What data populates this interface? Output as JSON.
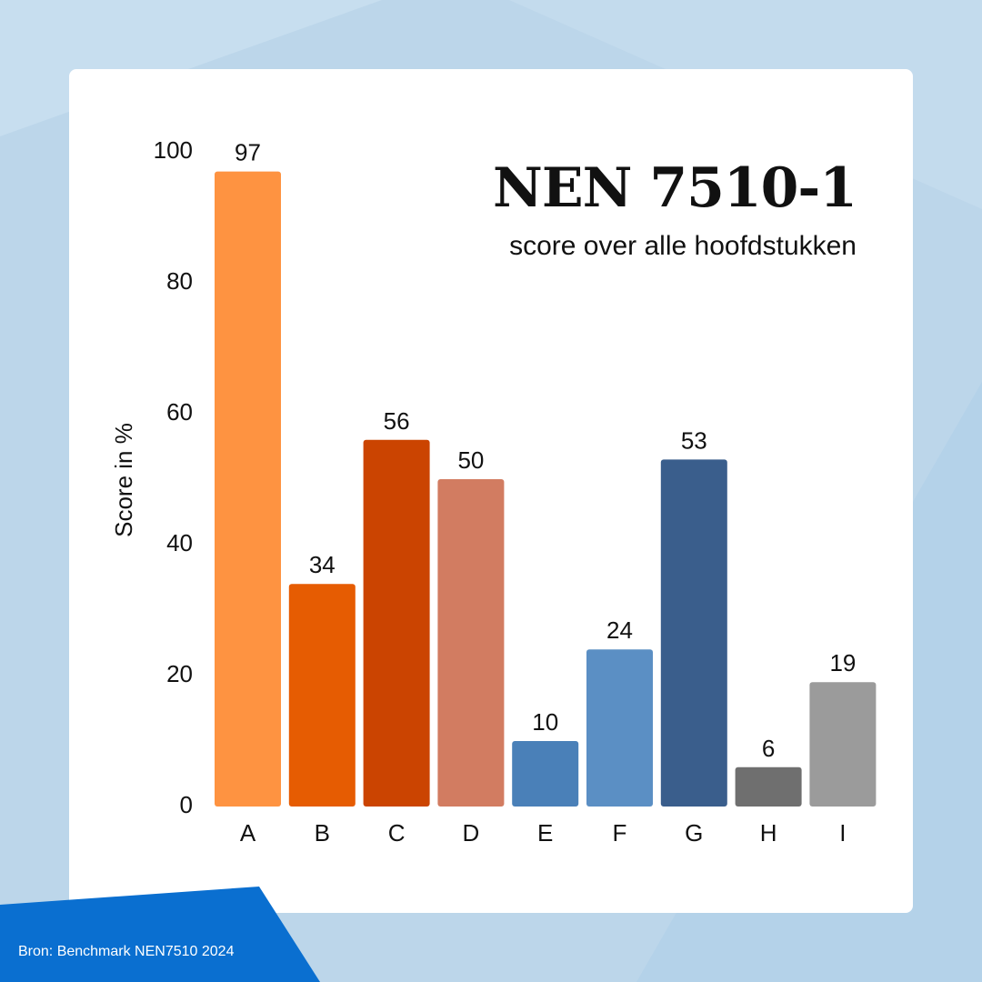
{
  "chart_data": {
    "type": "bar",
    "title": "NEN 7510-1",
    "subtitle": "score over alle hoofdstukken",
    "ylabel": "Score in %",
    "xlabel": "",
    "ylim": [
      0,
      100
    ],
    "yticks": [
      0,
      20,
      40,
      60,
      80,
      100
    ],
    "grid": false,
    "categories": [
      "A",
      "B",
      "C",
      "D",
      "E",
      "F",
      "G",
      "H",
      "I"
    ],
    "values": [
      97,
      34,
      56,
      50,
      10,
      24,
      53,
      6,
      19
    ],
    "colors": [
      "#fe9341",
      "#e65c02",
      "#cb4401",
      "#d27c61",
      "#4a80b8",
      "#5b8fc4",
      "#3a5e8c",
      "#6f6f6f",
      "#9b9b9b"
    ],
    "data_labels": true
  },
  "footer": {
    "source": "Bron: Benchmark NEN7510 2024"
  },
  "theme": {
    "background": "#bcd6ea",
    "card": "#ffffff",
    "accent_band": "#0a6fd0"
  }
}
